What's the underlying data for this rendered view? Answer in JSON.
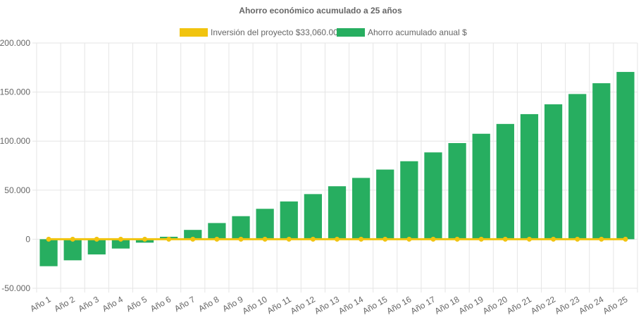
{
  "chart_data": {
    "type": "bar",
    "title": "Ahorro económico acumulado a 25 años",
    "categories": [
      "Año 1",
      "Año 2",
      "Año 3",
      "Año 4",
      "Año 5",
      "Año 6",
      "Año 7",
      "Año 8",
      "Año 9",
      "Año 10",
      "Año 11",
      "Año 12",
      "Año 13",
      "Año 14",
      "Año 15",
      "Año 16",
      "Año 17",
      "Año 18",
      "Año 19",
      "Año 20",
      "Año 21",
      "Año 22",
      "Año 23",
      "Año 24",
      "Año 25"
    ],
    "series": [
      {
        "name": "Inversión del proyecto $33,060.00",
        "type": "line",
        "color": "#f1c40f",
        "values": [
          0,
          0,
          0,
          0,
          0,
          0,
          0,
          0,
          0,
          0,
          0,
          0,
          0,
          0,
          0,
          0,
          0,
          0,
          0,
          0,
          0,
          0,
          0,
          0,
          0
        ]
      },
      {
        "name": "Ahorro acumulado anual $",
        "type": "bar",
        "color": "#27ae60",
        "values": [
          -27500,
          -21500,
          -15500,
          -9500,
          -3500,
          2500,
          9500,
          16500,
          23500,
          31000,
          38500,
          46000,
          54000,
          62500,
          71000,
          79500,
          88500,
          98000,
          107500,
          117500,
          127500,
          137500,
          148000,
          159000,
          170500
        ]
      }
    ],
    "ylim": [
      -50000,
      200000
    ],
    "yticks": [
      -50000,
      0,
      50000,
      100000,
      150000,
      200000
    ],
    "ytick_labels": [
      "-50.000",
      "0",
      "50.000",
      "100.000",
      "150.000",
      "200.000"
    ],
    "xlabel": "",
    "ylabel": "",
    "grid": true,
    "legend_position": "top-center"
  }
}
